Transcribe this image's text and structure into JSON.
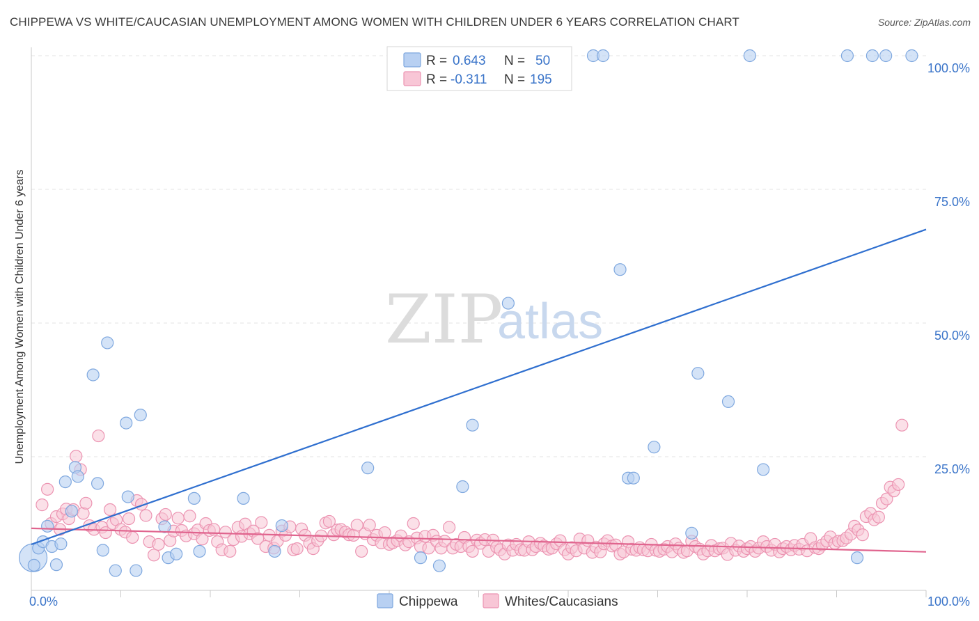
{
  "header": {
    "title": "CHIPPEWA VS WHITE/CAUCASIAN UNEMPLOYMENT AMONG WOMEN WITH CHILDREN UNDER 6 YEARS CORRELATION CHART",
    "source": "Source: ZipAtlas.com"
  },
  "watermark": {
    "zip": "ZIP",
    "atlas": "atlas"
  },
  "legend_box": {
    "rows": [
      {
        "r_label": "R =",
        "r_value": "0.643",
        "n_label": "N =",
        "n_value": "50"
      },
      {
        "r_label": "R =",
        "r_value": "-0.311",
        "n_label": "N =",
        "n_value": "195"
      }
    ]
  },
  "bottom_legend": {
    "items": [
      "Chippewa",
      "Whites/Caucasians"
    ]
  },
  "colors": {
    "chippewa_fill": "#b8d0f2",
    "chippewa_stroke": "#7fa8df",
    "chippewa_line": "#2f6fcf",
    "white_fill": "#f8c6d6",
    "white_stroke": "#ec94b2",
    "white_line": "#e0648e",
    "tick_text": "#3a74c9",
    "grid": "#e3e3e3"
  },
  "chart_data": {
    "type": "scatter",
    "title": "CHIPPEWA VS WHITE/CAUCASIAN UNEMPLOYMENT AMONG WOMEN WITH CHILDREN UNDER 6 YEARS CORRELATION CHART",
    "xlabel": "",
    "ylabel": "Unemployment Among Women with Children Under 6 years",
    "xlim": [
      0,
      100
    ],
    "ylim": [
      0,
      100
    ],
    "x_tick_labels": [
      "0.0%",
      "100.0%"
    ],
    "y_ticks": [
      25,
      50,
      75,
      100
    ],
    "y_tick_labels": [
      "25.0%",
      "50.0%",
      "75.0%",
      "100.0%"
    ],
    "grid": true,
    "series": [
      {
        "name": "Chippewa",
        "R": 0.643,
        "N": 50,
        "trend": {
          "x": [
            0,
            100
          ],
          "y": [
            8.6,
            67.5
          ]
        },
        "points": [
          [
            0.3,
            4.7
          ],
          [
            0.8,
            7.9
          ],
          [
            1.3,
            9.1
          ],
          [
            1.8,
            12
          ],
          [
            2.3,
            8.2
          ],
          [
            2.8,
            4.8
          ],
          [
            3.3,
            8.7
          ],
          [
            3.8,
            20.3
          ],
          [
            4.5,
            14.8
          ],
          [
            4.9,
            23
          ],
          [
            5.2,
            21.3
          ],
          [
            6.9,
            40.3
          ],
          [
            7.4,
            20
          ],
          [
            8.0,
            7.5
          ],
          [
            8.5,
            46.3
          ],
          [
            9.4,
            3.7
          ],
          [
            10.6,
            31.3
          ],
          [
            10.8,
            17.5
          ],
          [
            11.7,
            3.7
          ],
          [
            12.2,
            32.8
          ],
          [
            14.9,
            11.9
          ],
          [
            15.3,
            6.1
          ],
          [
            16.2,
            6.8
          ],
          [
            18.2,
            17.2
          ],
          [
            18.8,
            7.3
          ],
          [
            23.7,
            17.2
          ],
          [
            27.2,
            7.3
          ],
          [
            28.0,
            12.1
          ],
          [
            37.6,
            22.9
          ],
          [
            43.5,
            6.1
          ],
          [
            45.6,
            4.6
          ],
          [
            48.2,
            19.4
          ],
          [
            49.3,
            30.9
          ],
          [
            53.3,
            53.7
          ],
          [
            62.8,
            100
          ],
          [
            63.9,
            100
          ],
          [
            65.8,
            60
          ],
          [
            66.7,
            21
          ],
          [
            67.3,
            21
          ],
          [
            69.6,
            26.8
          ],
          [
            73.8,
            10.7
          ],
          [
            74.5,
            40.6
          ],
          [
            77.9,
            35.3
          ],
          [
            80.3,
            100
          ],
          [
            81.8,
            22.6
          ],
          [
            91.2,
            100
          ],
          [
            92.3,
            6.1
          ],
          [
            94.0,
            100
          ],
          [
            95.5,
            100
          ],
          [
            98.4,
            100
          ]
        ],
        "big_point": [
          0.2,
          6.1
        ]
      },
      {
        "name": "Whites/Caucasians",
        "R": -0.311,
        "N": 195,
        "trend": {
          "x": [
            0,
            100
          ],
          "y": [
            11.6,
            7.2
          ]
        },
        "points": [
          [
            1.2,
            16
          ],
          [
            1.8,
            18.9
          ],
          [
            2.2,
            12.5
          ],
          [
            2.8,
            13.8
          ],
          [
            3.2,
            11.4
          ],
          [
            3.5,
            14.3
          ],
          [
            3.9,
            15.2
          ],
          [
            4.2,
            13.4
          ],
          [
            4.7,
            15.1
          ],
          [
            5.0,
            25.1
          ],
          [
            5.5,
            22.6
          ],
          [
            5.8,
            14.4
          ],
          [
            6.1,
            16.3
          ],
          [
            6.5,
            12.1
          ],
          [
            7.0,
            11.4
          ],
          [
            7.5,
            28.9
          ],
          [
            7.9,
            11.8
          ],
          [
            8.3,
            10.8
          ],
          [
            8.8,
            15.1
          ],
          [
            9.1,
            12.5
          ],
          [
            9.5,
            13.2
          ],
          [
            10.0,
            11.4
          ],
          [
            10.5,
            10.9
          ],
          [
            10.9,
            13.4
          ],
          [
            11.3,
            9.9
          ],
          [
            11.8,
            16.8
          ],
          [
            12.3,
            16.1
          ],
          [
            12.8,
            14
          ],
          [
            13.2,
            9.1
          ],
          [
            13.7,
            6.6
          ],
          [
            14.2,
            8.6
          ],
          [
            14.6,
            13.4
          ],
          [
            15.0,
            14.2
          ],
          [
            15.5,
            9.3
          ],
          [
            15.9,
            11.1
          ],
          [
            16.4,
            13.5
          ],
          [
            16.8,
            11.2
          ],
          [
            17.3,
            10.2
          ],
          [
            17.7,
            13.9
          ],
          [
            18.2,
            10.6
          ],
          [
            18.6,
            11.3
          ],
          [
            19.1,
            9.6
          ],
          [
            19.5,
            12.5
          ],
          [
            19.9,
            11.2
          ],
          [
            20.4,
            11.4
          ],
          [
            20.8,
            9.1
          ],
          [
            21.3,
            7.6
          ],
          [
            21.7,
            10.9
          ],
          [
            22.2,
            7.3
          ],
          [
            22.6,
            9.5
          ],
          [
            23.1,
            11.8
          ],
          [
            23.5,
            10.1
          ],
          [
            23.9,
            12.4
          ],
          [
            24.4,
            10.6
          ],
          [
            24.8,
            11.1
          ],
          [
            25.3,
            9.7
          ],
          [
            25.7,
            12.7
          ],
          [
            26.2,
            8.2
          ],
          [
            26.6,
            10.3
          ],
          [
            27.1,
            7.9
          ],
          [
            27.5,
            9.2
          ],
          [
            28.0,
            11.1
          ],
          [
            28.4,
            10.3
          ],
          [
            28.9,
            11.9
          ],
          [
            29.3,
            7.6
          ],
          [
            29.7,
            7.8
          ],
          [
            30.2,
            11.5
          ],
          [
            30.6,
            10.3
          ],
          [
            31.1,
            8.8
          ],
          [
            31.5,
            7.8
          ],
          [
            32.0,
            9.3
          ],
          [
            32.4,
            10.2
          ],
          [
            32.9,
            12.6
          ],
          [
            33.3,
            12.9
          ],
          [
            33.8,
            10.4
          ],
          [
            34.2,
            11.3
          ],
          [
            34.6,
            11.4
          ],
          [
            35.1,
            10.9
          ],
          [
            35.5,
            10.4
          ],
          [
            36.0,
            10.3
          ],
          [
            36.4,
            12.2
          ],
          [
            36.9,
            7.3
          ],
          [
            37.3,
            10.6
          ],
          [
            37.8,
            12.2
          ],
          [
            38.2,
            9.5
          ],
          [
            38.6,
            10.3
          ],
          [
            39.1,
            8.9
          ],
          [
            39.5,
            10.8
          ],
          [
            40.0,
            8.6
          ],
          [
            40.4,
            8.9
          ],
          [
            40.9,
            9.3
          ],
          [
            41.3,
            10.2
          ],
          [
            41.8,
            8.5
          ],
          [
            42.2,
            9.1
          ],
          [
            42.7,
            12.5
          ],
          [
            43.1,
            9.8
          ],
          [
            43.5,
            8.2
          ],
          [
            44.0,
            10.1
          ],
          [
            44.4,
            7.9
          ],
          [
            44.9,
            10.3
          ],
          [
            45.3,
            9.2
          ],
          [
            45.8,
            7.9
          ],
          [
            46.2,
            9.2
          ],
          [
            46.7,
            11.8
          ],
          [
            47.1,
            7.9
          ],
          [
            47.5,
            8.6
          ],
          [
            48.0,
            8.2
          ],
          [
            48.4,
            9.9
          ],
          [
            48.9,
            8.2
          ],
          [
            49.3,
            7.3
          ],
          [
            49.8,
            9.4
          ],
          [
            50.2,
            8.8
          ],
          [
            50.7,
            9.5
          ],
          [
            51.1,
            7.3
          ],
          [
            51.6,
            9.4
          ],
          [
            52.0,
            8.1
          ],
          [
            52.4,
            7.6
          ],
          [
            52.9,
            6.8
          ],
          [
            53.3,
            8.5
          ],
          [
            53.8,
            7.5
          ],
          [
            54.2,
            8.6
          ],
          [
            54.7,
            7.6
          ],
          [
            55.1,
            7.5
          ],
          [
            55.6,
            9.1
          ],
          [
            56.0,
            7.6
          ],
          [
            56.4,
            8.2
          ],
          [
            56.9,
            8.8
          ],
          [
            57.3,
            8.3
          ],
          [
            57.8,
            7.7
          ],
          [
            58.2,
            7.9
          ],
          [
            58.7,
            8.7
          ],
          [
            59.1,
            9.3
          ],
          [
            59.6,
            7.6
          ],
          [
            60.0,
            6.8
          ],
          [
            60.4,
            8
          ],
          [
            60.9,
            7.4
          ],
          [
            61.3,
            9.6
          ],
          [
            61.8,
            7.9
          ],
          [
            62.2,
            9.3
          ],
          [
            62.7,
            7.1
          ],
          [
            63.1,
            8.1
          ],
          [
            63.6,
            7.2
          ],
          [
            64.0,
            8.7
          ],
          [
            64.4,
            9.3
          ],
          [
            64.9,
            8.3
          ],
          [
            65.3,
            8.5
          ],
          [
            65.8,
            6.8
          ],
          [
            66.2,
            7.2
          ],
          [
            66.7,
            9.1
          ],
          [
            67.1,
            7.7
          ],
          [
            67.6,
            7.5
          ],
          [
            68.0,
            8
          ],
          [
            68.4,
            7.6
          ],
          [
            68.9,
            7.4
          ],
          [
            69.3,
            8.6
          ],
          [
            69.8,
            7.5
          ],
          [
            70.2,
            7.3
          ],
          [
            70.7,
            7.7
          ],
          [
            71.1,
            8.2
          ],
          [
            71.6,
            7.2
          ],
          [
            72.0,
            8.7
          ],
          [
            72.4,
            7.9
          ],
          [
            72.9,
            7.1
          ],
          [
            73.3,
            7.4
          ],
          [
            73.8,
            9.2
          ],
          [
            74.2,
            8.2
          ],
          [
            74.7,
            7.7
          ],
          [
            75.1,
            6.8
          ],
          [
            75.6,
            7.4
          ],
          [
            76.0,
            8.4
          ],
          [
            76.4,
            7.4
          ],
          [
            76.9,
            7.8
          ],
          [
            77.3,
            7.9
          ],
          [
            77.8,
            6.7
          ],
          [
            78.2,
            8.8
          ],
          [
            78.7,
            7.5
          ],
          [
            79.1,
            8.3
          ],
          [
            79.6,
            7.3
          ],
          [
            80.0,
            7.8
          ],
          [
            80.4,
            8.2
          ],
          [
            80.9,
            7.3
          ],
          [
            81.3,
            7.9
          ],
          [
            81.8,
            9.1
          ],
          [
            82.2,
            8.2
          ],
          [
            82.7,
            7.5
          ],
          [
            83.1,
            8.6
          ],
          [
            83.6,
            7.2
          ],
          [
            84.0,
            7.8
          ],
          [
            84.4,
            8.2
          ],
          [
            84.9,
            7.6
          ],
          [
            85.3,
            8.4
          ],
          [
            85.8,
            7.7
          ]
        ],
        "extra_points": [
          [
            86.2,
            8.6
          ],
          [
            86.7,
            7.4
          ],
          [
            87.1,
            9.7
          ],
          [
            87.6,
            8
          ],
          [
            88.0,
            7.8
          ],
          [
            88.4,
            8.5
          ],
          [
            88.9,
            9.2
          ],
          [
            89.3,
            10
          ],
          [
            89.8,
            8.8
          ],
          [
            90.2,
            9.2
          ],
          [
            90.7,
            9.3
          ],
          [
            91.1,
            9.8
          ],
          [
            91.6,
            10.5
          ],
          [
            92.0,
            12
          ],
          [
            92.4,
            11.3
          ],
          [
            92.9,
            10.4
          ],
          [
            93.3,
            13.8
          ],
          [
            93.8,
            14.4
          ],
          [
            94.2,
            13.2
          ],
          [
            94.7,
            13.7
          ],
          [
            95.1,
            16.3
          ],
          [
            95.6,
            17.1
          ],
          [
            96.0,
            19.3
          ],
          [
            96.4,
            18.6
          ],
          [
            96.9,
            19.8
          ],
          [
            97.3,
            30.9
          ]
        ]
      }
    ]
  }
}
